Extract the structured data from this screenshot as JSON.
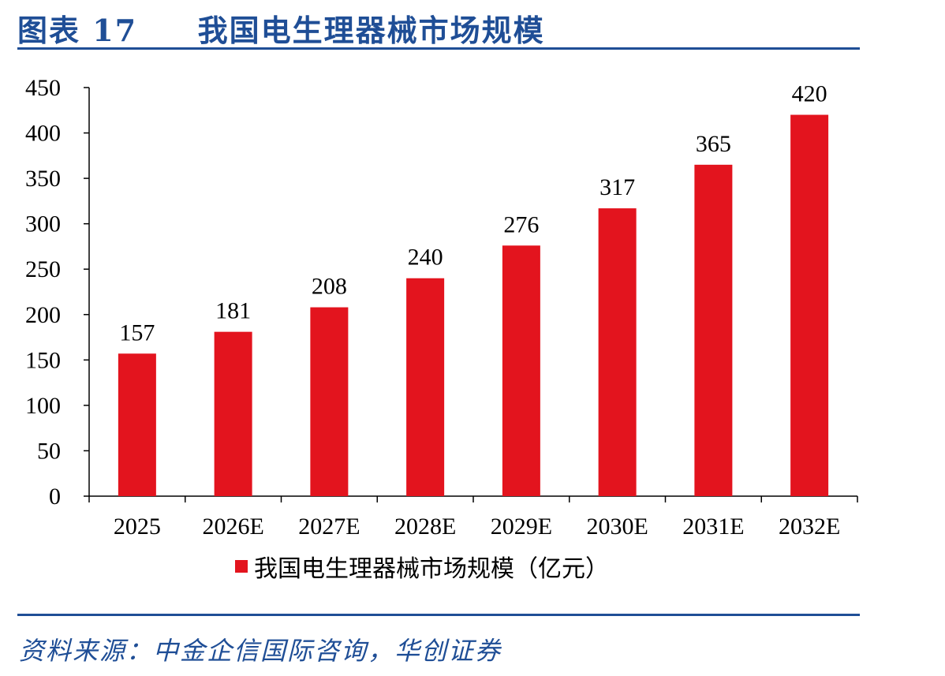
{
  "header": {
    "figure_label": "图表 17",
    "title": "我国电生理器械市场规模"
  },
  "source": "资料来源：中金企信国际咨询，华创证券",
  "colors": {
    "bar": "#e3141e",
    "accent": "#1f4e96"
  },
  "chart_data": {
    "type": "bar",
    "categories": [
      "2025",
      "2026E",
      "2027E",
      "2028E",
      "2029E",
      "2030E",
      "2031E",
      "2032E"
    ],
    "series": [
      {
        "name": "我国电生理器械市场规模（亿元）",
        "values": [
          157,
          181,
          208,
          240,
          276,
          317,
          365,
          420
        ]
      }
    ],
    "ylim": [
      0,
      450
    ],
    "yticks": [
      0,
      50,
      100,
      150,
      200,
      250,
      300,
      350,
      400,
      450
    ],
    "data_labels": true,
    "legend_position": "bottom",
    "grid": false
  }
}
